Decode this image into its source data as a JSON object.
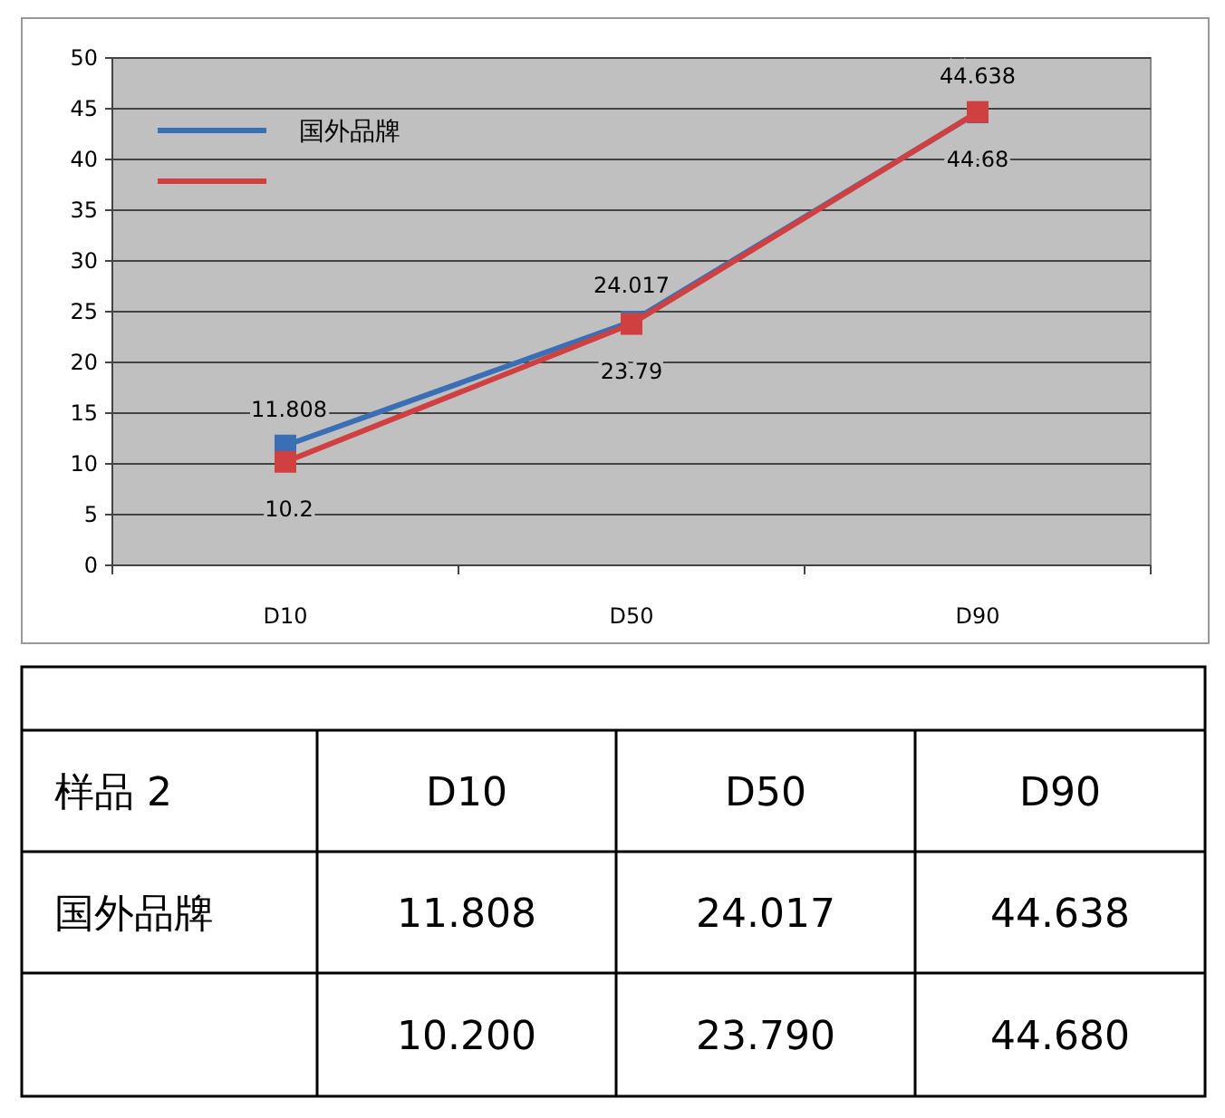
{
  "chart_data": [
    {
      "type": "line",
      "categories": [
        "D10",
        "D50",
        "D90"
      ],
      "series": [
        {
          "name": "国外品牌",
          "color": "#3a6fb5",
          "values": [
            11.808,
            24.017,
            44.638
          ],
          "value_labels": [
            "11.808",
            "24.017",
            "44.638"
          ]
        },
        {
          "color": "#d04040",
          "values": [
            10.2,
            23.79,
            44.68
          ],
          "value_labels": [
            "10.2",
            "23.79",
            "44.68"
          ]
        }
      ],
      "ylim": [
        0,
        50
      ],
      "yticks": [
        0,
        5,
        10,
        15,
        20,
        25,
        30,
        35,
        40,
        45,
        50
      ],
      "grid": "y",
      "legend": "top left",
      "marker": "square"
    },
    {
      "type": "other",
      "categories": [
        "D10",
        "D50",
        "D90"
      ],
      "series": [
        {
          "name": "国外品牌",
          "values": [
            11.808,
            24.017,
            44.638
          ],
          "value_labels": [
            "11.808",
            "24.017",
            "44.638"
          ]
        },
        {
          "values": [
            10.2,
            23.79,
            44.68
          ],
          "value_labels": [
            "10.200",
            "23.790",
            "44.680"
          ]
        }
      ],
      "annotations": [
        "样品 2"
      ]
    }
  ]
}
